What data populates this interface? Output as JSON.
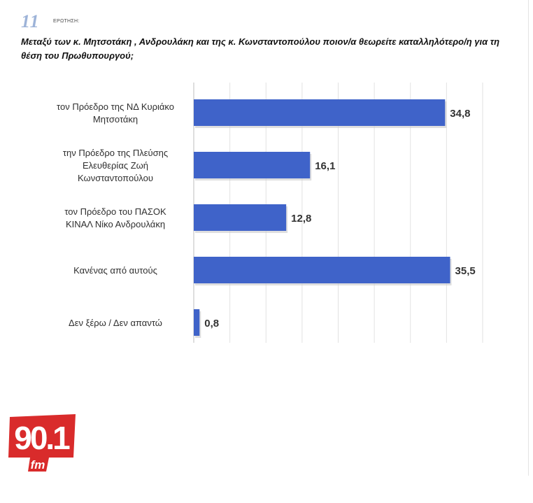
{
  "header": {
    "question_number": "11",
    "question_label": "ΕΡΩΤΗΣΗ:",
    "question_text": "Μεταξύ των κ. Μητσοτάκη , Ανδρουλάκη και της κ. Κωνσταντοπούλου ποιον/α θεωρείτε καταλληλότερο/η για τη θέση του Πρωθυπουργού;"
  },
  "chart_data": {
    "type": "bar",
    "orientation": "horizontal",
    "categories": [
      [
        "τον Πρόεδρο της ΝΔ Κυριάκο",
        "Μητσοτάκη"
      ],
      [
        "την Πρόεδρο της Πλεύσης",
        "Ελευθερίας Ζωή",
        "Κωνσταντοπούλου"
      ],
      [
        "τον Πρόεδρο του ΠΑΣΟΚ",
        "ΚΙΝΑΛ Νίκο Ανδρουλάκη"
      ],
      [
        "Κανένας από αυτούς"
      ],
      [
        "Δεν ξέρω / Δεν απαντώ"
      ]
    ],
    "values": [
      34.8,
      16.1,
      12.8,
      35.5,
      0.8
    ],
    "value_labels": [
      "34,8",
      "16,1",
      "12,8",
      "35,5",
      "0,8"
    ],
    "xlim": [
      0,
      40
    ],
    "grid": true,
    "bar_color": "#3f63c9"
  },
  "logo": {
    "text_main": "90.1",
    "text_sub": "fm",
    "color": "#d92b2b"
  }
}
